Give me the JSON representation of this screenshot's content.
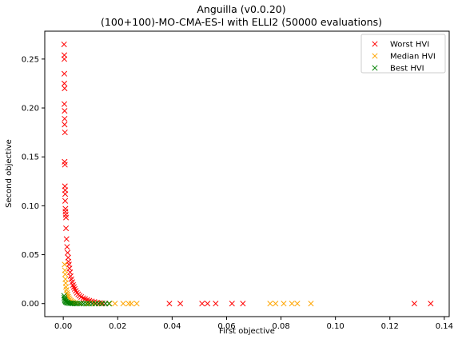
{
  "chart_data": {
    "type": "scatter",
    "title": "Anguilla (v0.0.20)",
    "subtitle": "(100+100)-MO-CMA-ES-I with ELLI2 (50000 evaluations)",
    "xlabel": "First objective",
    "ylabel": "Second objective",
    "xlim": [
      -0.0068,
      0.1418
    ],
    "ylim": [
      -0.0133,
      0.2785
    ],
    "xticks": [
      "0.00",
      "0.02",
      "0.04",
      "0.06",
      "0.08",
      "0.10",
      "0.12",
      "0.14"
    ],
    "yticks": [
      "0.00",
      "0.05",
      "0.10",
      "0.15",
      "0.20",
      "0.25"
    ],
    "grid": false,
    "legend_position": "top-right",
    "marker": "x",
    "series": [
      {
        "name": "Worst HVI",
        "color": "#ff0000",
        "points": [
          [
            0.0003,
            0.265
          ],
          [
            0.0004,
            0.254
          ],
          [
            0.0004,
            0.25
          ],
          [
            0.0004,
            0.235
          ],
          [
            0.0004,
            0.225
          ],
          [
            0.0005,
            0.22
          ],
          [
            0.0004,
            0.204
          ],
          [
            0.0005,
            0.197
          ],
          [
            0.0005,
            0.189
          ],
          [
            0.0005,
            0.183
          ],
          [
            0.0006,
            0.175
          ],
          [
            0.0005,
            0.145
          ],
          [
            0.0006,
            0.142
          ],
          [
            0.0006,
            0.12
          ],
          [
            0.0007,
            0.116
          ],
          [
            0.0007,
            0.112
          ],
          [
            0.0007,
            0.105
          ],
          [
            0.0008,
            0.097
          ],
          [
            0.0008,
            0.094
          ],
          [
            0.0009,
            0.091
          ],
          [
            0.001,
            0.088
          ],
          [
            0.001,
            0.077
          ],
          [
            0.0012,
            0.066
          ],
          [
            0.0014,
            0.058
          ],
          [
            0.0016,
            0.052
          ],
          [
            0.0018,
            0.047
          ],
          [
            0.0019,
            0.043
          ],
          [
            0.0021,
            0.04
          ],
          [
            0.0023,
            0.036
          ],
          [
            0.0025,
            0.032
          ],
          [
            0.0027,
            0.028
          ],
          [
            0.003,
            0.025
          ],
          [
            0.0033,
            0.022
          ],
          [
            0.0036,
            0.019
          ],
          [
            0.0039,
            0.017
          ],
          [
            0.0042,
            0.015
          ],
          [
            0.0046,
            0.013
          ],
          [
            0.005,
            0.011
          ],
          [
            0.0055,
            0.0095
          ],
          [
            0.006,
            0.008
          ],
          [
            0.0066,
            0.0068
          ],
          [
            0.0073,
            0.0056
          ],
          [
            0.008,
            0.0047
          ],
          [
            0.0088,
            0.0038
          ],
          [
            0.0096,
            0.003
          ],
          [
            0.0105,
            0.0023
          ],
          [
            0.0114,
            0.0017
          ],
          [
            0.0124,
            0.0011
          ],
          [
            0.0135,
            0.0006
          ],
          [
            0.0145,
            0.0003
          ],
          [
            0.0155,
            0.0001
          ],
          [
            0.039,
            0.0
          ],
          [
            0.043,
            0.0
          ],
          [
            0.051,
            0.0
          ],
          [
            0.053,
            0.0
          ],
          [
            0.056,
            0.0
          ],
          [
            0.062,
            0.0
          ],
          [
            0.066,
            0.0
          ],
          [
            0.129,
            0.0
          ],
          [
            0.135,
            0.0
          ]
        ]
      },
      {
        "name": "Median HVI",
        "color": "#ffa500",
        "points": [
          [
            0.0005,
            0.04
          ],
          [
            0.0006,
            0.034
          ],
          [
            0.0007,
            0.03
          ],
          [
            0.0008,
            0.025
          ],
          [
            0.0009,
            0.021
          ],
          [
            0.001,
            0.017
          ],
          [
            0.0012,
            0.014
          ],
          [
            0.0014,
            0.011
          ],
          [
            0.0016,
            0.009
          ],
          [
            0.0018,
            0.007
          ],
          [
            0.0021,
            0.0055
          ],
          [
            0.0024,
            0.004
          ],
          [
            0.0028,
            0.003
          ],
          [
            0.0032,
            0.002
          ],
          [
            0.0037,
            0.0013
          ],
          [
            0.0043,
            0.0008
          ],
          [
            0.005,
            0.0004
          ],
          [
            0.006,
            0.0002
          ],
          [
            0.0075,
            0.0001
          ],
          [
            0.009,
            0.0
          ],
          [
            0.0115,
            0.0
          ],
          [
            0.014,
            0.0
          ],
          [
            0.017,
            0.0
          ],
          [
            0.019,
            0.0
          ],
          [
            0.022,
            0.0
          ],
          [
            0.024,
            0.0
          ],
          [
            0.025,
            0.0
          ],
          [
            0.027,
            0.0
          ],
          [
            0.076,
            0.0
          ],
          [
            0.078,
            0.0
          ],
          [
            0.081,
            0.0
          ],
          [
            0.084,
            0.0
          ],
          [
            0.086,
            0.0
          ],
          [
            0.091,
            0.0
          ]
        ]
      },
      {
        "name": "Best HVI",
        "color": "#008000",
        "points": [
          [
            0.0003,
            0.008
          ],
          [
            0.0004,
            0.006
          ],
          [
            0.0005,
            0.0045
          ],
          [
            0.0006,
            0.0033
          ],
          [
            0.0008,
            0.0024
          ],
          [
            0.001,
            0.0017
          ],
          [
            0.0013,
            0.0012
          ],
          [
            0.0016,
            0.0008
          ],
          [
            0.002,
            0.0005
          ],
          [
            0.0025,
            0.0003
          ],
          [
            0.003,
            0.0002
          ],
          [
            0.0036,
            0.0001
          ],
          [
            0.0043,
            0.0
          ],
          [
            0.005,
            0.0
          ],
          [
            0.0058,
            0.0
          ],
          [
            0.0066,
            0.0
          ],
          [
            0.0075,
            0.0
          ],
          [
            0.0085,
            0.0
          ],
          [
            0.0095,
            0.0
          ],
          [
            0.0106,
            0.0
          ],
          [
            0.0118,
            0.0
          ],
          [
            0.013,
            0.0
          ],
          [
            0.0142,
            0.0
          ],
          [
            0.0155,
            0.0
          ],
          [
            0.0168,
            0.0
          ]
        ]
      }
    ]
  }
}
